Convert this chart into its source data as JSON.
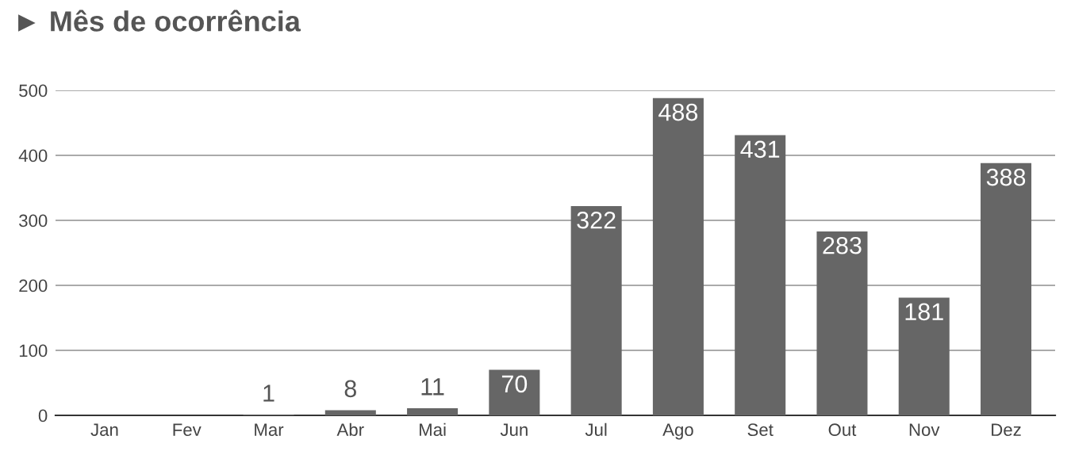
{
  "chart_data": {
    "type": "bar",
    "title": "► Mês de ocorrência",
    "categories": [
      "Jan",
      "Fev",
      "Mar",
      "Abr",
      "Mai",
      "Jun",
      "Jul",
      "Ago",
      "Set",
      "Out",
      "Nov",
      "Dez"
    ],
    "values": [
      0,
      0,
      1,
      8,
      11,
      70,
      322,
      488,
      431,
      283,
      181,
      388
    ],
    "value_labels": [
      null,
      null,
      "1",
      "8",
      "11",
      "70",
      "322",
      "488",
      "431",
      "283",
      "181",
      "388"
    ],
    "color": "#666666",
    "ylim": [
      0,
      500
    ],
    "yticks": [
      0,
      100,
      200,
      300,
      400,
      500
    ],
    "grid": "y"
  }
}
